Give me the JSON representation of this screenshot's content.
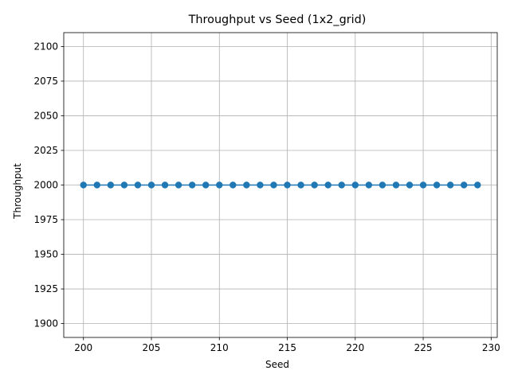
{
  "chart_data": {
    "type": "line",
    "title": "Throughput vs Seed (1x2_grid)",
    "xlabel": "Seed",
    "ylabel": "Throughput",
    "xlim": [
      198.55,
      230.45
    ],
    "ylim": [
      1890,
      2110
    ],
    "xticks": [
      200,
      205,
      210,
      215,
      220,
      225,
      230
    ],
    "yticks": [
      1900,
      1925,
      1950,
      1975,
      2000,
      2025,
      2050,
      2075,
      2100
    ],
    "grid": true,
    "series": [
      {
        "color": "#1f77b4",
        "marker": "circle",
        "x": [
          200,
          201,
          202,
          203,
          204,
          205,
          206,
          207,
          208,
          209,
          210,
          211,
          212,
          213,
          214,
          215,
          216,
          217,
          218,
          219,
          220,
          221,
          222,
          223,
          224,
          225,
          226,
          227,
          228,
          229
        ],
        "y": [
          2000,
          2000,
          2000,
          2000,
          2000,
          2000,
          2000,
          2000,
          2000,
          2000,
          2000,
          2000,
          2000,
          2000,
          2000,
          2000,
          2000,
          2000,
          2000,
          2000,
          2000,
          2000,
          2000,
          2000,
          2000,
          2000,
          2000,
          2000,
          2000,
          2000
        ]
      }
    ]
  }
}
